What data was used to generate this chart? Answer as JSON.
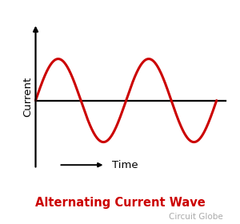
{
  "title": "Alternating Current Wave",
  "subtitle": "Circuit Globe",
  "wave_color": "#cc0000",
  "wave_linewidth": 2.2,
  "axis_color": "#000000",
  "axis_linewidth": 1.6,
  "background_color": "#ffffff",
  "ylabel": "Current",
  "xlabel": "Time",
  "title_fontsize": 10.5,
  "subtitle_fontsize": 7.5,
  "label_fontsize": 9.5,
  "wave_amplitude": 1.0,
  "num_points": 500,
  "xlim": [
    -0.5,
    8.5
  ],
  "ylim": [
    -2.0,
    2.2
  ],
  "vaxis_x": 0.0,
  "haxis_y": 0.0,
  "wave_x_start": 0.0,
  "wave_x_end": 7.8,
  "wave_period_scale": 1.0
}
